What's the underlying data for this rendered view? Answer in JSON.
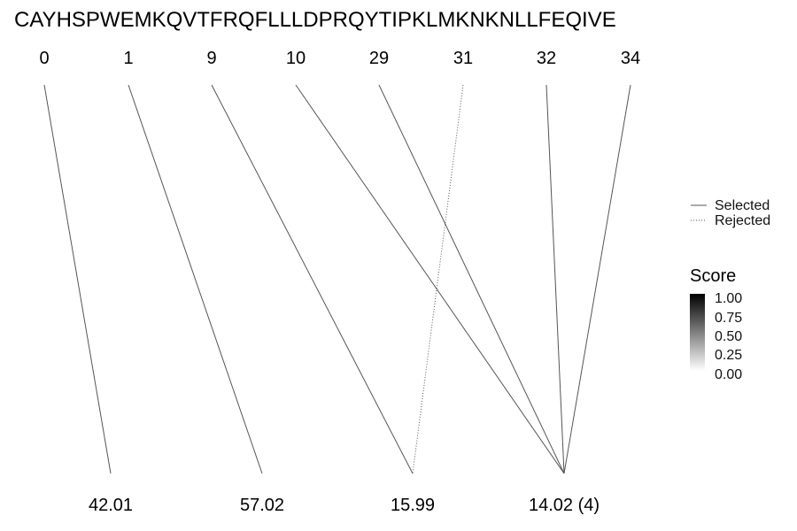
{
  "sequence": "CAYHSPWEMKQVTFRQFLLLDPRQYTIPKLMKNKNLLFEQIVE",
  "top_labels": [
    "0",
    "1",
    "9",
    "10",
    "29",
    "31",
    "32",
    "34"
  ],
  "bottom_labels": [
    "42.01",
    "57.02",
    "15.99",
    "14.02 (4)"
  ],
  "connections": [
    {
      "from": 0,
      "to": 0,
      "status": "selected",
      "score": 0.5
    },
    {
      "from": 1,
      "to": 1,
      "status": "selected",
      "score": 0.5
    },
    {
      "from": 2,
      "to": 2,
      "status": "selected",
      "score": 0.5
    },
    {
      "from": 3,
      "to": 3,
      "status": "selected",
      "score": 0.5
    },
    {
      "from": 4,
      "to": 3,
      "status": "selected",
      "score": 0.5
    },
    {
      "from": 5,
      "to": 2,
      "status": "rejected",
      "score": 0.5
    },
    {
      "from": 6,
      "to": 3,
      "status": "selected",
      "score": 0.5
    },
    {
      "from": 7,
      "to": 3,
      "status": "selected",
      "score": 0.5
    }
  ],
  "legend": {
    "selected_label": "Selected",
    "rejected_label": "Rejected",
    "score_title": "Score",
    "score_ticks": [
      "1.00",
      "0.75",
      "0.50",
      "0.25",
      "0.00"
    ]
  },
  "colors": {
    "line": "#555555",
    "gradient_high": "#000000",
    "gradient_low": "#ffffff"
  }
}
